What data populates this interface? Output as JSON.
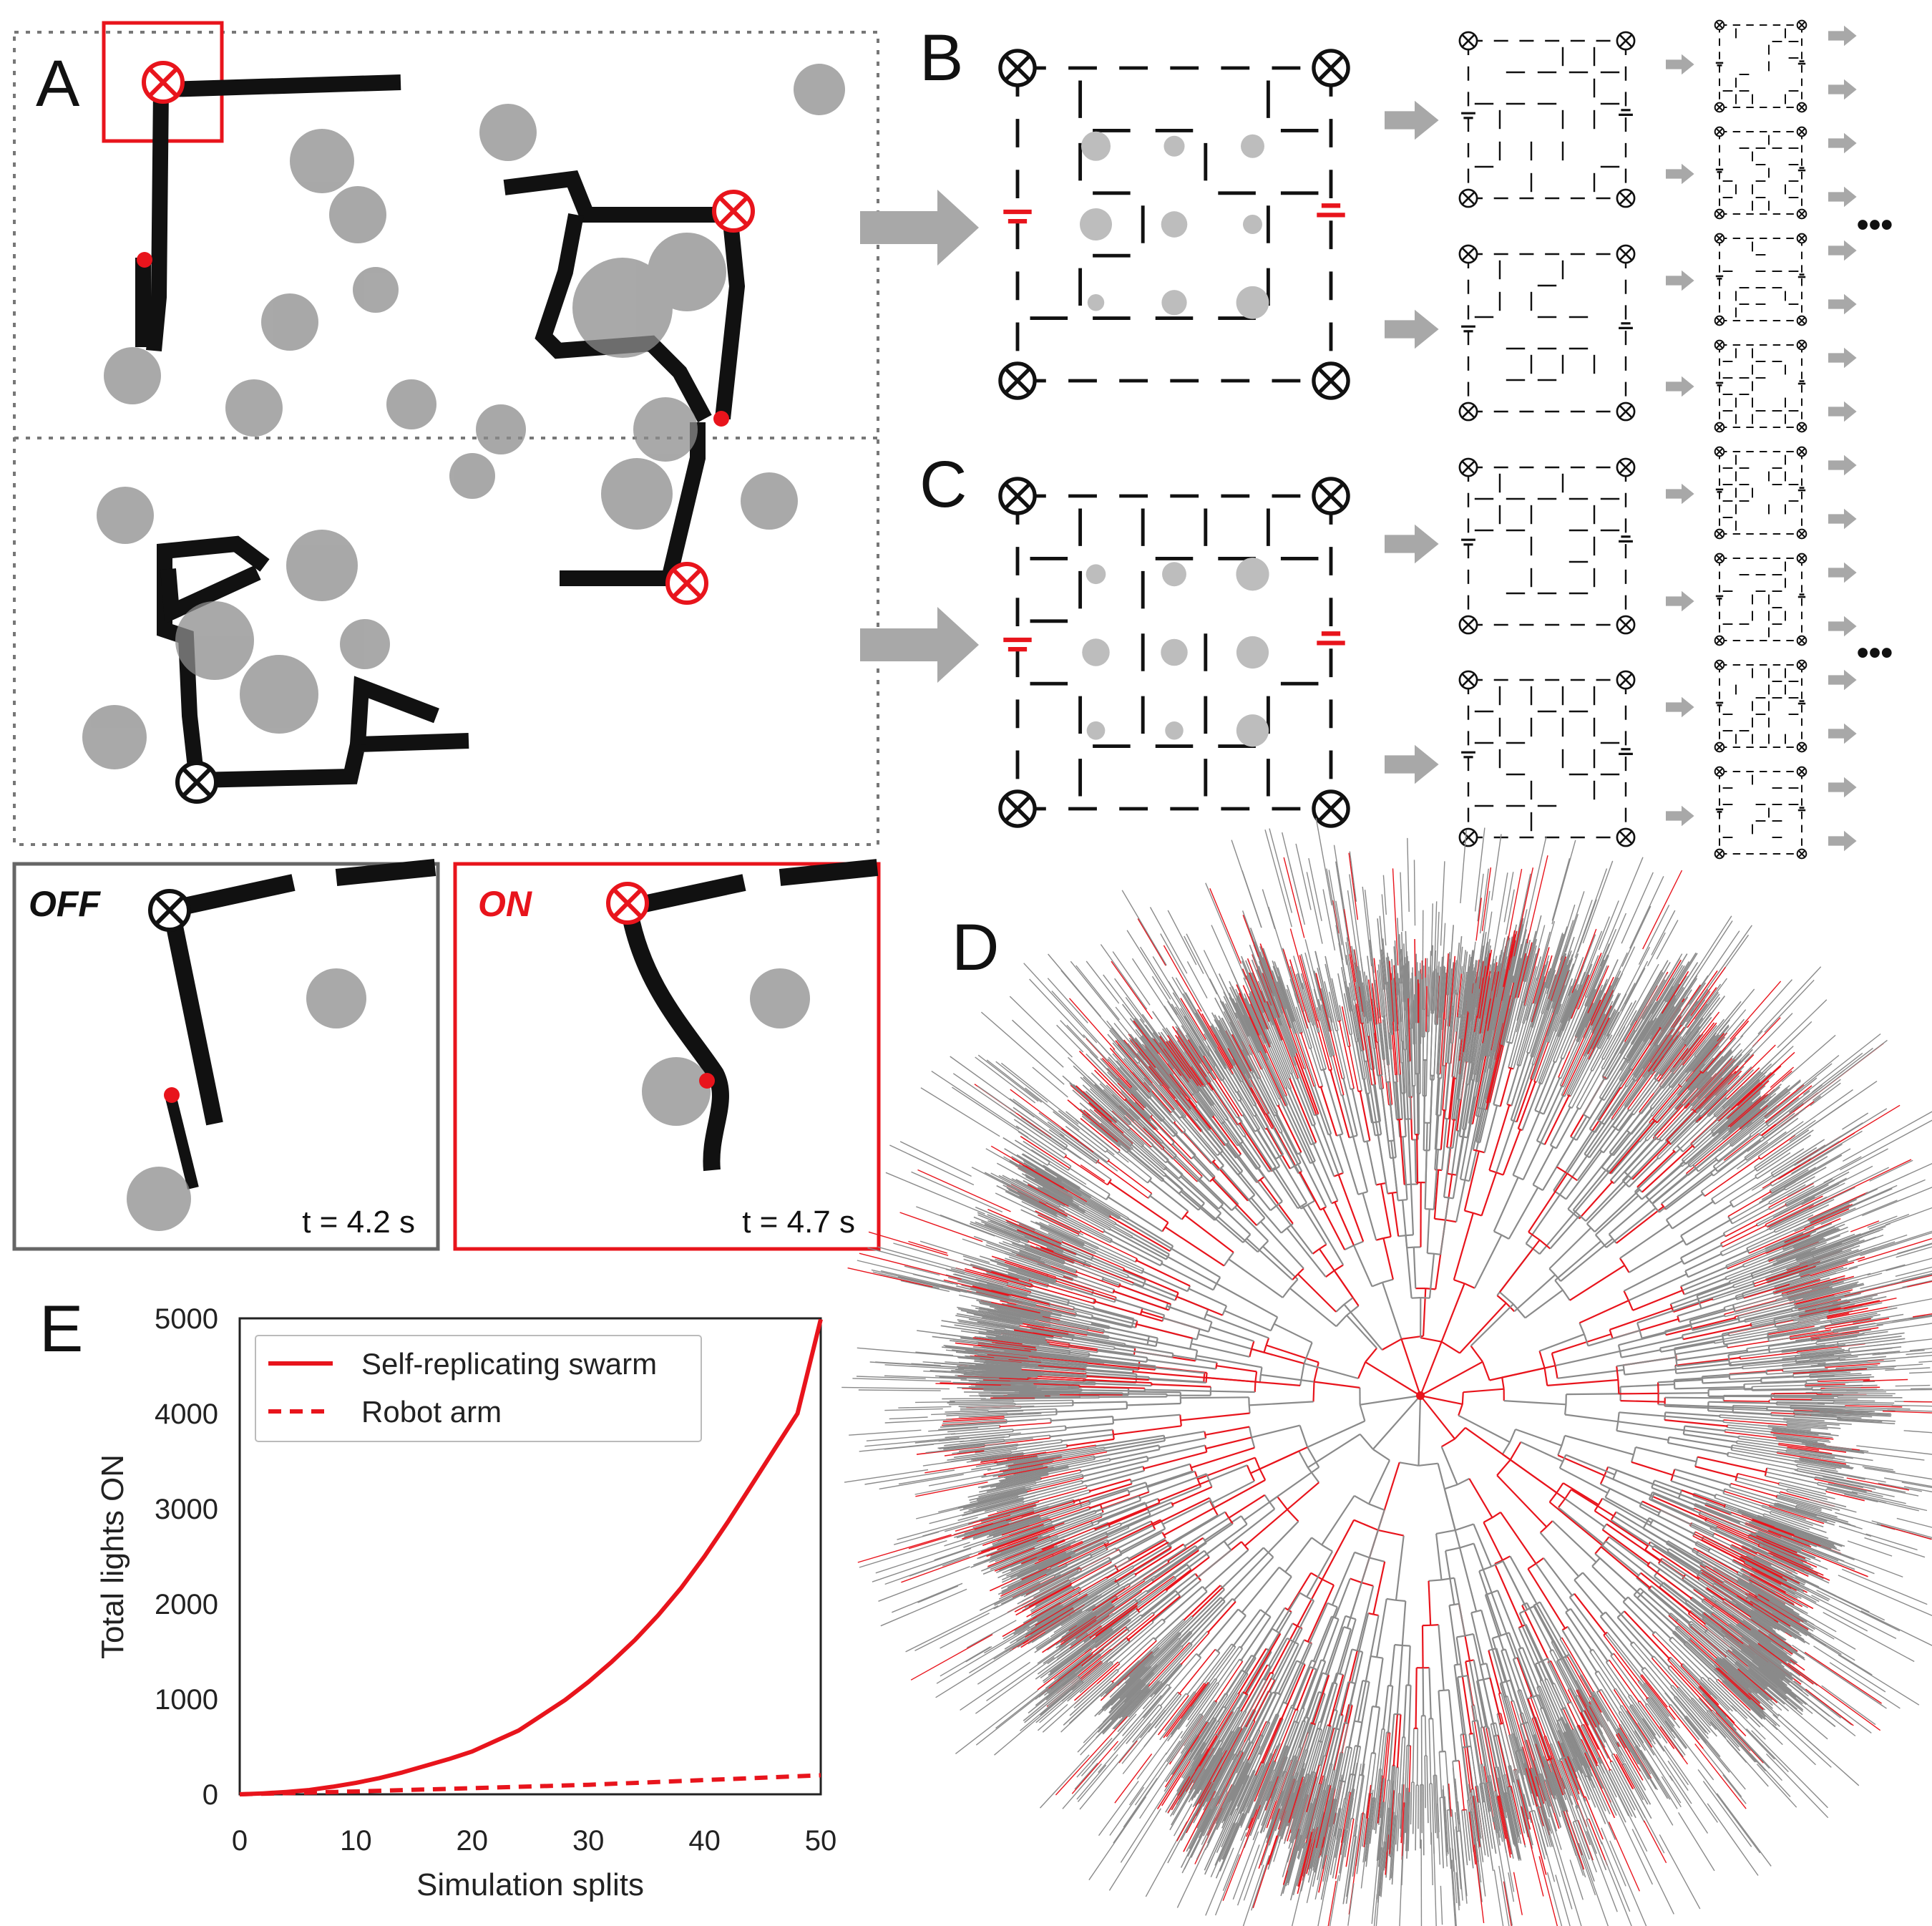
{
  "panels": {
    "a": "A",
    "b": "B",
    "c": "C",
    "d": "D",
    "e": "E"
  },
  "insets": {
    "off_label": "OFF",
    "on_label": "ON",
    "off_time": "t = 4.2 s",
    "on_time": "t = 4.7 s"
  },
  "ellipsis": "•••",
  "colors": {
    "red": "#e8141c",
    "black": "#111111",
    "grey_block": "#8c8c8c",
    "arrow_grey": "#a0a0a0",
    "tree_grey": "#8a8a8a"
  },
  "chart_data": {
    "type": "line",
    "xlabel": "Simulation splits",
    "ylabel": "Total lights ON",
    "xlim": [
      0,
      50
    ],
    "ylim": [
      0,
      5000
    ],
    "xticks": [
      0,
      10,
      20,
      30,
      40,
      50
    ],
    "yticks": [
      0,
      1000,
      2000,
      3000,
      4000,
      5000
    ],
    "grid": false,
    "legend_position": "top-left",
    "series": [
      {
        "name": "Self-replicating swarm",
        "style": "solid",
        "x": [
          0,
          2,
          4,
          6,
          8,
          10,
          12,
          14,
          16,
          18,
          20,
          22,
          24,
          26,
          28,
          30,
          32,
          34,
          36,
          38,
          40,
          42,
          44,
          46,
          48,
          50
        ],
        "y": [
          0,
          10,
          25,
          45,
          80,
          120,
          170,
          230,
          300,
          370,
          450,
          560,
          670,
          830,
          990,
          1180,
          1390,
          1620,
          1880,
          2170,
          2500,
          2860,
          3240,
          3620,
          4000,
          4990
        ]
      },
      {
        "name": "Robot arm",
        "style": "dashed",
        "x": [
          0,
          10,
          20,
          30,
          40,
          50
        ],
        "y": [
          0,
          30,
          65,
          100,
          150,
          200
        ]
      }
    ]
  }
}
